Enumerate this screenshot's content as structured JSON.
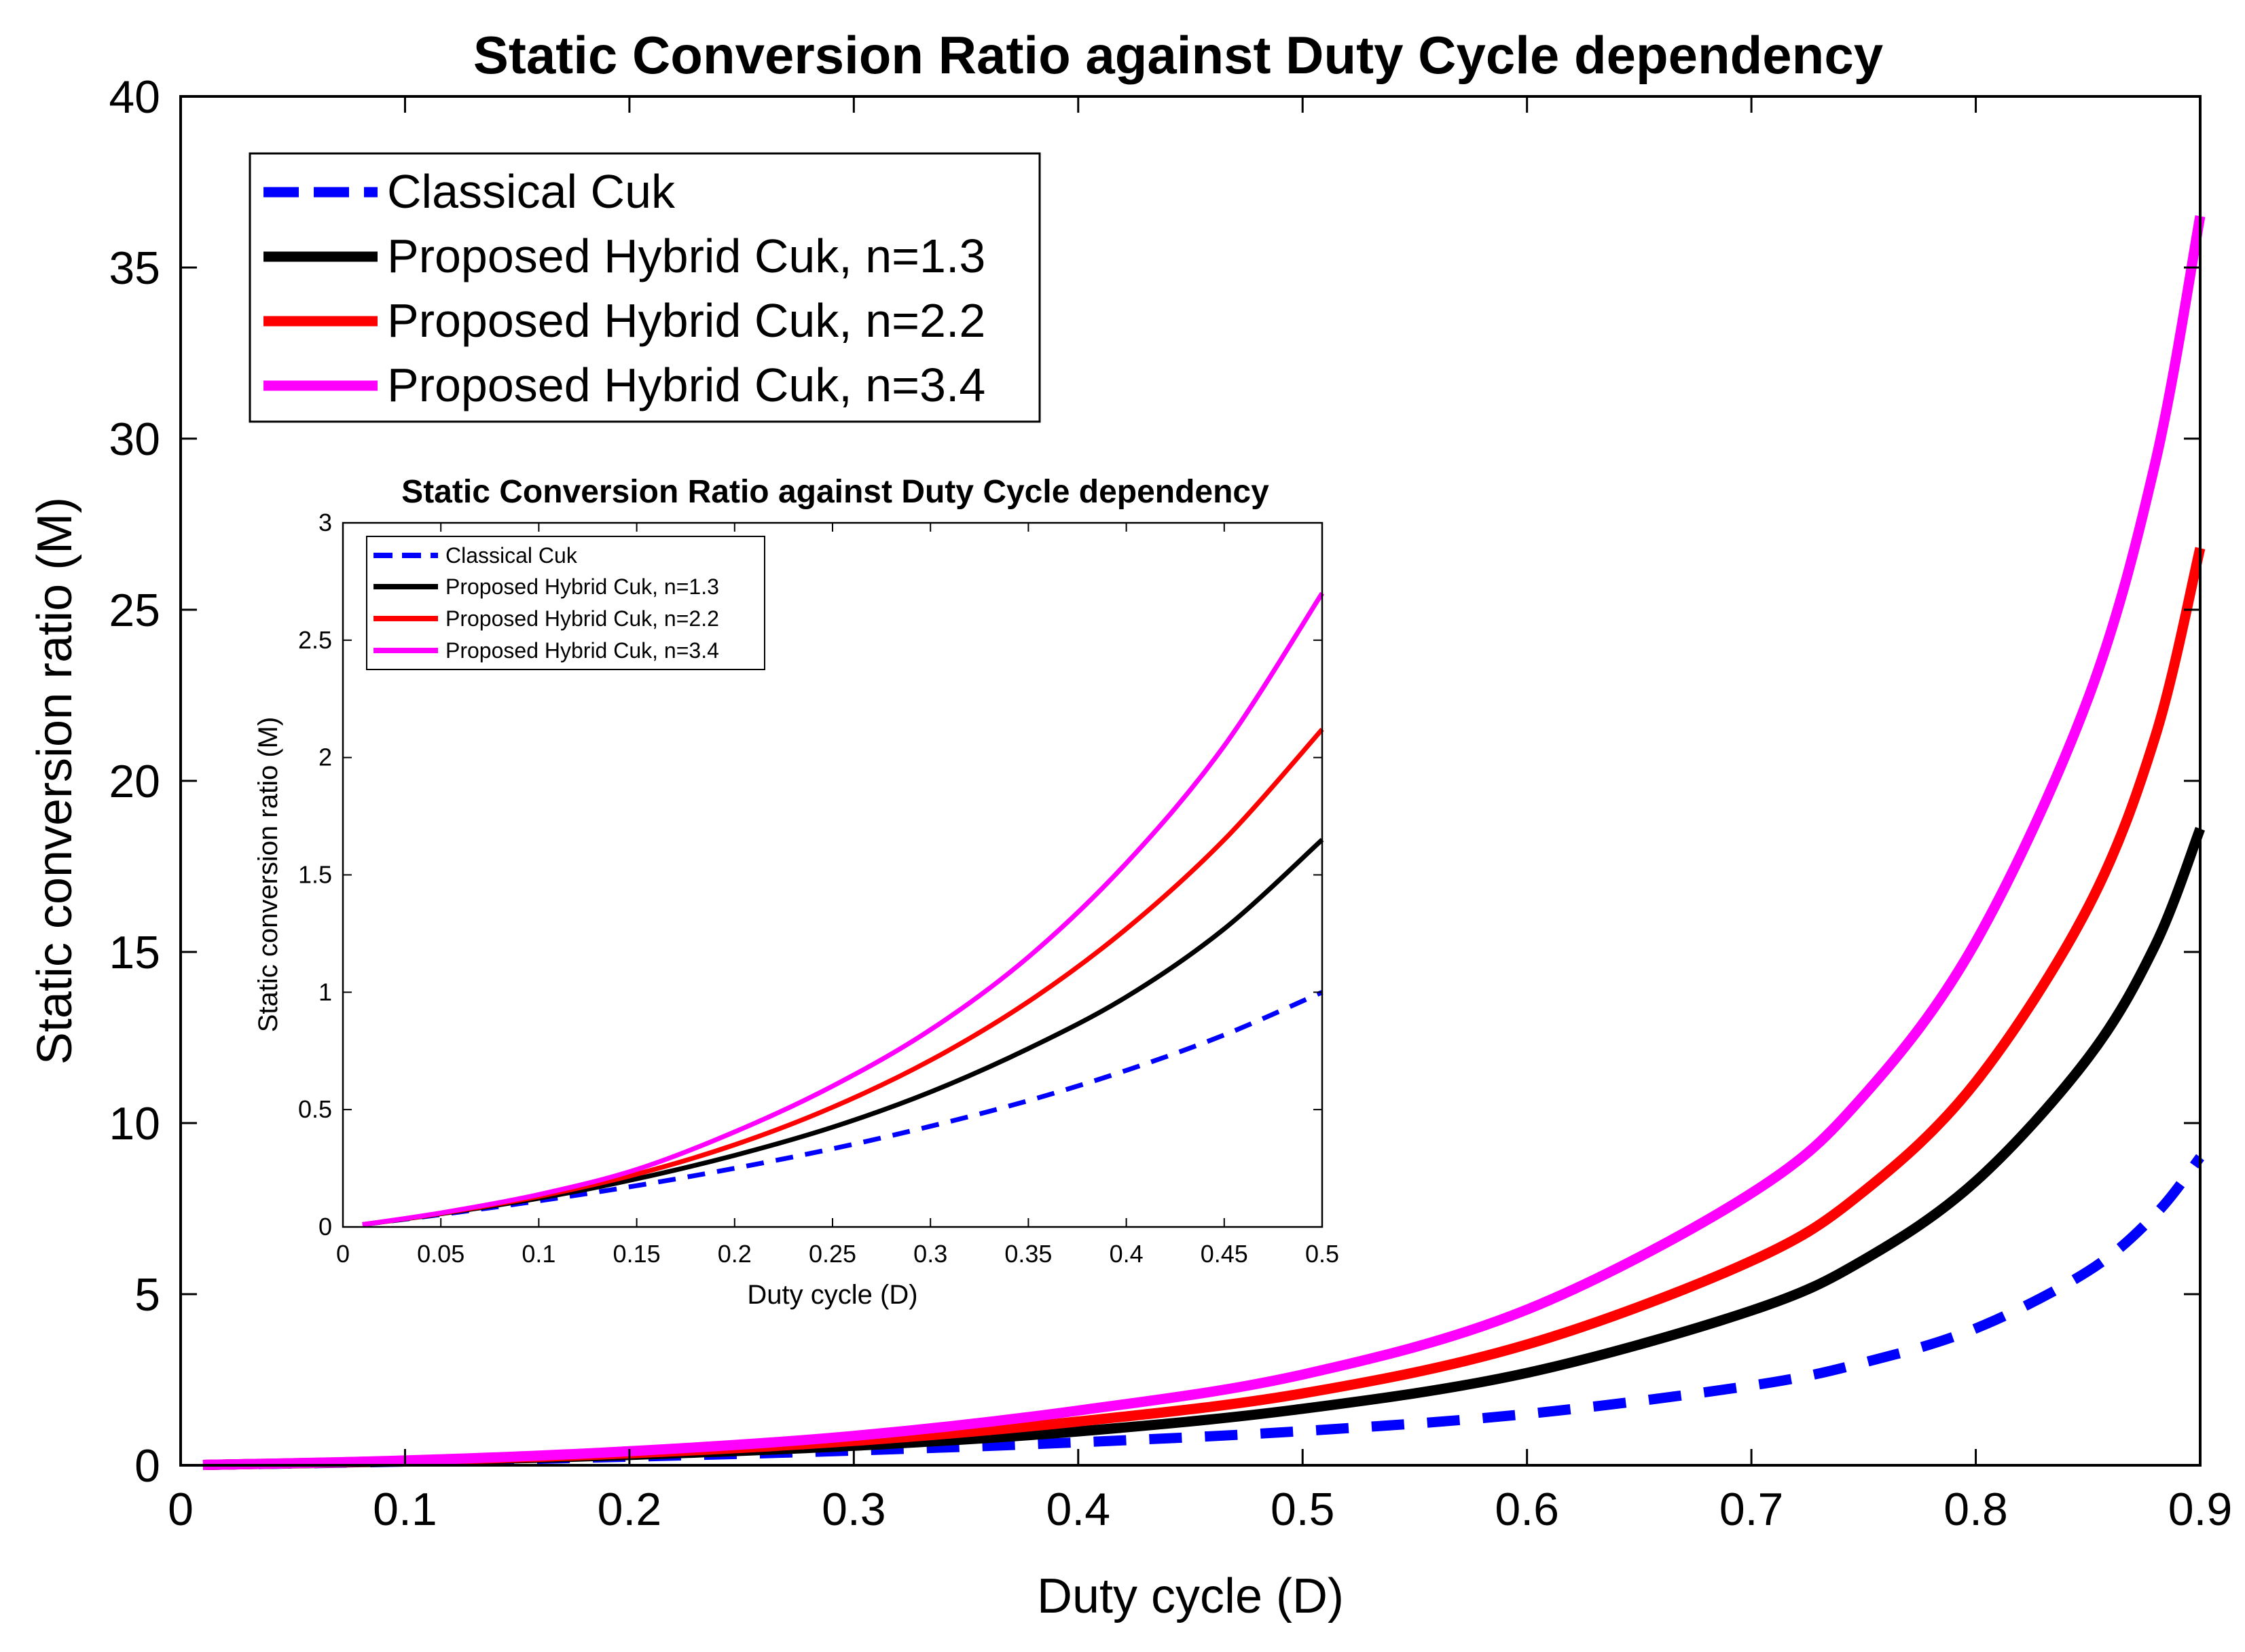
{
  "chart_data": [
    {
      "id": "main",
      "type": "line",
      "title": "Static Conversion Ratio against Duty Cycle dependency",
      "xlabel": "Duty cycle (D)",
      "ylabel": "Static conversion ratio (M)",
      "xlim": [
        0,
        0.9
      ],
      "ylim": [
        0,
        40
      ],
      "xticks": [
        0,
        0.1,
        0.2,
        0.3,
        0.4,
        0.5,
        0.6,
        0.7,
        0.8,
        0.9
      ],
      "xtick_labels": [
        "0",
        "0.1",
        "0.2",
        "0.3",
        "0.4",
        "0.5",
        "0.6",
        "0.7",
        "0.8",
        "0.9"
      ],
      "yticks": [
        0,
        5,
        10,
        15,
        20,
        25,
        30,
        35,
        40
      ],
      "ytick_labels": [
        "0",
        "5",
        "10",
        "15",
        "20",
        "25",
        "30",
        "35",
        "40"
      ],
      "legend_position": "top-left",
      "grid": false,
      "series": [
        {
          "name": "Classical Cuk",
          "color": "#0000ff",
          "dash": "dashed",
          "x": [
            0.01,
            0.1,
            0.2,
            0.3,
            0.4,
            0.5,
            0.6,
            0.7,
            0.75,
            0.8,
            0.85,
            0.88,
            0.9
          ],
          "y": [
            0.01,
            0.11,
            0.25,
            0.43,
            0.67,
            1.0,
            1.5,
            2.33,
            3.0,
            4.0,
            5.67,
            7.33,
            9.0
          ]
        },
        {
          "name": "Proposed Hybrid Cuk, n=1.3",
          "color": "#000000",
          "dash": "solid",
          "x": [
            0.01,
            0.1,
            0.2,
            0.3,
            0.4,
            0.5,
            0.6,
            0.7,
            0.75,
            0.8,
            0.85,
            0.88,
            0.9
          ],
          "y": [
            0.01,
            0.12,
            0.3,
            0.57,
            0.99,
            1.65,
            2.7,
            4.52,
            6.0,
            8.3,
            11.9,
            15.2,
            18.6
          ]
        },
        {
          "name": "Proposed Hybrid Cuk, n=2.2",
          "color": "#ff0000",
          "dash": "solid",
          "x": [
            0.01,
            0.1,
            0.2,
            0.3,
            0.4,
            0.5,
            0.6,
            0.7,
            0.75,
            0.8,
            0.85,
            0.88,
            0.9
          ],
          "y": [
            0.01,
            0.13,
            0.35,
            0.71,
            1.28,
            2.1,
            3.53,
            5.97,
            8.0,
            11.2,
            16.3,
            21.3,
            26.8
          ]
        },
        {
          "name": "Proposed Hybrid Cuk, n=3.4",
          "color": "#ff00ff",
          "dash": "solid",
          "x": [
            0.01,
            0.1,
            0.2,
            0.3,
            0.4,
            0.5,
            0.6,
            0.7,
            0.75,
            0.8,
            0.85,
            0.88,
            0.9
          ],
          "y": [
            0.01,
            0.14,
            0.41,
            0.86,
            1.6,
            2.65,
            4.55,
            7.95,
            10.8,
            15.3,
            22.4,
            29.3,
            36.5
          ]
        }
      ]
    },
    {
      "id": "inset",
      "type": "line",
      "title": "Static Conversion Ratio against Duty Cycle dependency",
      "xlabel": "Duty cycle (D)",
      "ylabel": "Static conversion ratio (M)",
      "xlim": [
        0,
        0.5
      ],
      "ylim": [
        0,
        3
      ],
      "xticks": [
        0,
        0.05,
        0.1,
        0.15,
        0.2,
        0.25,
        0.3,
        0.35,
        0.4,
        0.45,
        0.5
      ],
      "xtick_labels": [
        "0",
        "0.05",
        "0.1",
        "0.15",
        "0.2",
        "0.25",
        "0.3",
        "0.35",
        "0.4",
        "0.45",
        "0.5"
      ],
      "yticks": [
        0,
        0.5,
        1,
        1.5,
        2,
        2.5,
        3
      ],
      "ytick_labels": [
        "0",
        "0.5",
        "1",
        "1.5",
        "2",
        "2.5",
        "3"
      ],
      "legend_position": "top-left",
      "grid": false,
      "series": [
        {
          "name": "Classical Cuk",
          "color": "#0000ff",
          "dash": "dashed",
          "x": [
            0.01,
            0.05,
            0.1,
            0.15,
            0.2,
            0.25,
            0.3,
            0.35,
            0.4,
            0.45,
            0.5
          ],
          "y": [
            0.01,
            0.053,
            0.111,
            0.176,
            0.25,
            0.333,
            0.429,
            0.538,
            0.667,
            0.818,
            1.0
          ]
        },
        {
          "name": "Proposed Hybrid Cuk, n=1.3",
          "color": "#000000",
          "dash": "solid",
          "x": [
            0.01,
            0.05,
            0.1,
            0.15,
            0.2,
            0.25,
            0.3,
            0.35,
            0.4,
            0.45,
            0.5
          ],
          "y": [
            0.01,
            0.056,
            0.122,
            0.205,
            0.305,
            0.425,
            0.575,
            0.76,
            0.98,
            1.27,
            1.65
          ]
        },
        {
          "name": "Proposed Hybrid Cuk, n=2.2",
          "color": "#ff0000",
          "dash": "solid",
          "x": [
            0.01,
            0.05,
            0.1,
            0.15,
            0.2,
            0.25,
            0.3,
            0.35,
            0.4,
            0.45,
            0.5
          ],
          "y": [
            0.01,
            0.058,
            0.13,
            0.225,
            0.35,
            0.51,
            0.71,
            0.96,
            1.27,
            1.65,
            2.12
          ]
        },
        {
          "name": "Proposed Hybrid Cuk, n=3.4",
          "color": "#ff00ff",
          "dash": "solid",
          "x": [
            0.01,
            0.05,
            0.1,
            0.15,
            0.2,
            0.25,
            0.3,
            0.35,
            0.4,
            0.45,
            0.5
          ],
          "y": [
            0.01,
            0.06,
            0.138,
            0.245,
            0.405,
            0.6,
            0.84,
            1.15,
            1.55,
            2.05,
            2.7
          ]
        }
      ]
    }
  ]
}
